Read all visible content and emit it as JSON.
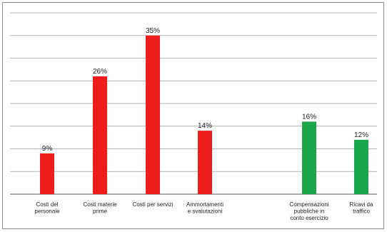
{
  "chart_data": {
    "type": "bar",
    "title": "",
    "xlabel": "",
    "ylabel": "",
    "ylim": [
      0,
      40
    ],
    "grid": true,
    "legend": "none",
    "categories": [
      [
        "Costi del",
        "personale"
      ],
      [
        "Costi materie",
        "prime"
      ],
      [
        "Costi per servizi"
      ],
      [
        "Ammortamenti",
        "e svalutazioni"
      ],
      [
        "Compensazioni",
        "pubbliche in",
        "conto esercizio"
      ],
      [
        "Ricavi da",
        "traffico"
      ]
    ],
    "values": [
      9,
      26,
      35,
      14,
      16,
      12
    ],
    "value_labels": [
      "9%",
      "26%",
      "35%",
      "14%",
      "16%",
      "12%"
    ],
    "colors": [
      "#ee1c1c",
      "#ee1c1c",
      "#ee1c1c",
      "#ee1c1c",
      "#1aa64a",
      "#1aa64a"
    ]
  }
}
